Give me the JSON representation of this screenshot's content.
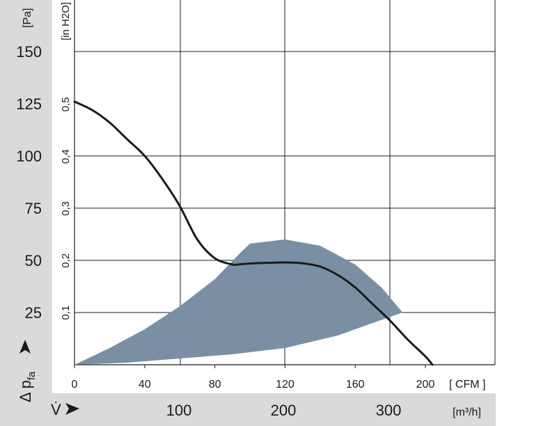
{
  "chart_data": {
    "type": "line",
    "title": "",
    "colors": {
      "curve": "#1a1a1a",
      "operating_range": "#7a8fa3",
      "grid": "#1a1a1a",
      "side_band": "#d9dadc"
    },
    "y_axis_pa": {
      "label": "Δ p",
      "label_sub": "fa",
      "unit": "[Pa]",
      "ticks": [
        "25",
        "50",
        "75",
        "100",
        "125",
        "150"
      ],
      "tick_values": [
        25,
        50,
        75,
        100,
        125,
        150
      ],
      "range": [
        0,
        150
      ]
    },
    "y_axis_inh2o": {
      "unit": "[in H2O]",
      "ticks": [
        "0,1",
        "0,2",
        "0,3",
        "0,4",
        "0,5"
      ],
      "tick_values": [
        0.1,
        0.2,
        0.3,
        0.4,
        0.5
      ]
    },
    "x_axis_cfm": {
      "unit": "[ CFM ]",
      "ticks": [
        "0",
        "40",
        "80",
        "120",
        "160",
        "200"
      ],
      "tick_values": [
        0,
        40,
        80,
        120,
        160,
        200
      ],
      "range": [
        0,
        240
      ]
    },
    "x_axis_m3h": {
      "label": "V̇",
      "unit": "[m³/h]",
      "ticks": [
        "100",
        "200",
        "300"
      ],
      "tick_values": [
        100,
        200,
        300
      ]
    },
    "series": [
      {
        "x_cfm": [
          0,
          10,
          20,
          30,
          40,
          50,
          60,
          70,
          80,
          90,
          93,
          100,
          110,
          120,
          130,
          140,
          150,
          160,
          170,
          180,
          190,
          200,
          204
        ],
        "y_pa": [
          126,
          122,
          116,
          108,
          100,
          89,
          76,
          60,
          51,
          48,
          48,
          48.5,
          48.8,
          49,
          48.6,
          47,
          43,
          37,
          29,
          21,
          12,
          4,
          0
        ]
      }
    ],
    "operating_range": {
      "upper_x_cfm": [
        0,
        20,
        40,
        60,
        80,
        95,
        100,
        120,
        140,
        160,
        175,
        187
      ],
      "upper_y_pa": [
        0,
        8,
        17,
        28,
        41,
        54,
        58,
        60,
        57,
        48,
        37,
        25
      ],
      "lower_x_cfm": [
        187,
        170,
        150,
        120,
        90,
        60,
        30,
        0
      ],
      "lower_y_pa": [
        25,
        20,
        14,
        8,
        5,
        3,
        1,
        0
      ]
    }
  }
}
